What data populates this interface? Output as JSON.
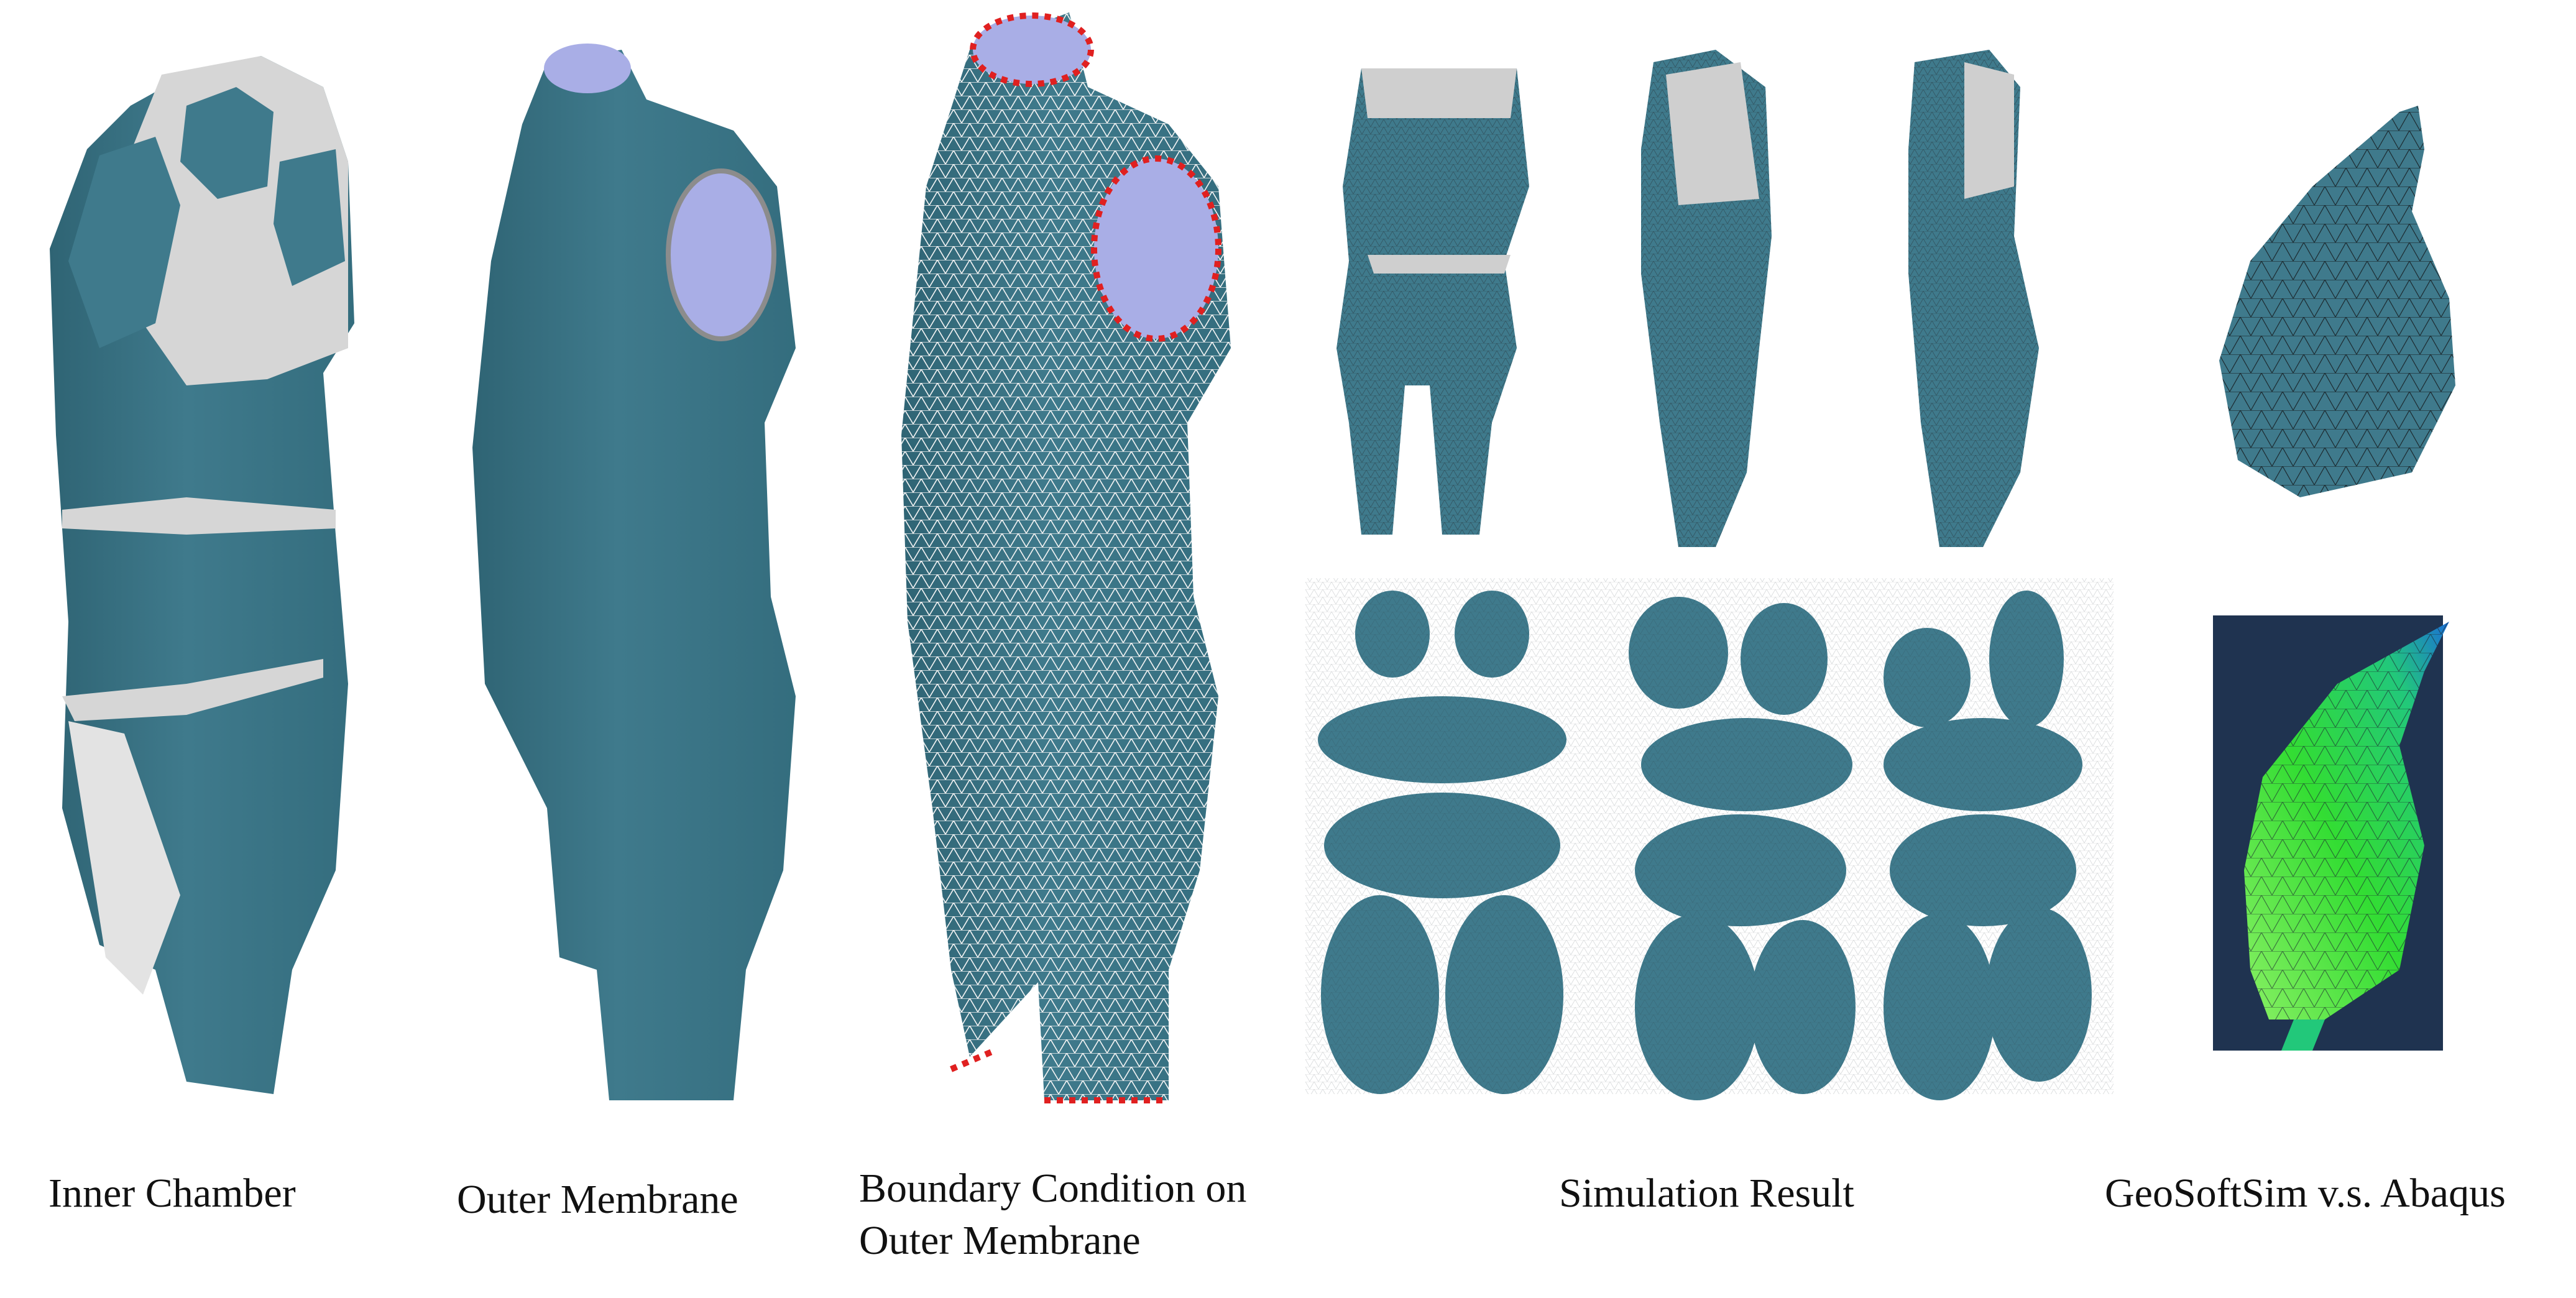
{
  "figure": {
    "captions": {
      "inner_chamber": "Inner Chamber",
      "outer_membrane": "Outer Membrane",
      "boundary_line1": "Boundary Condition on",
      "boundary_line2": "Outer Membrane",
      "simulation_result": "Simulation Result",
      "comparison": "GeoSoftSim v.s. Abaqus"
    },
    "colors": {
      "body_teal": "#3f7a8c",
      "cavity_grey": "#d6d6d6",
      "inner_lavender": "#a9aee6",
      "boundary_red": "#e02020",
      "abaqus_bg": "#1f3350",
      "abaqus_green": "#33dd33"
    }
  }
}
